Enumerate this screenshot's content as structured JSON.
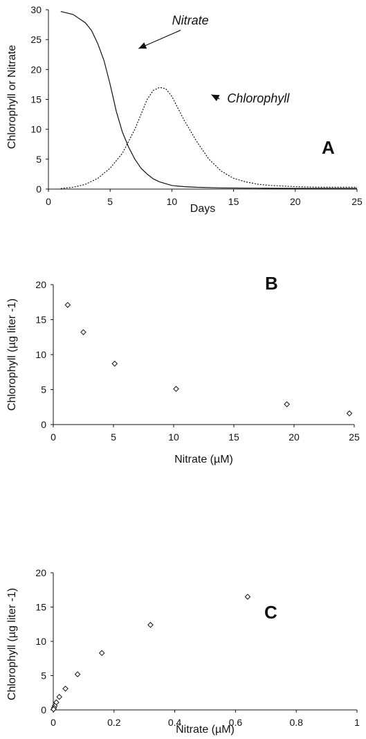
{
  "chart_data": [
    {
      "type": "line",
      "panel_label": "A",
      "xlabel": "Days",
      "ylabel": "Chlorophyll or Nitrate",
      "xlim": [
        0,
        25
      ],
      "ylim": [
        0,
        30
      ],
      "xticks": [
        0,
        5,
        10,
        15,
        20,
        25
      ],
      "yticks": [
        0,
        5,
        10,
        15,
        20,
        25,
        30
      ],
      "grid": false,
      "series": [
        {
          "name": "Nitrate",
          "style": "solid",
          "x": [
            1,
            2,
            3,
            3.5,
            4,
            4.5,
            5,
            5.5,
            6,
            6.5,
            7,
            7.5,
            8,
            8.5,
            9,
            10,
            11,
            12,
            14,
            17,
            20,
            25
          ],
          "y": [
            29.7,
            29.2,
            27.8,
            26.5,
            24.3,
            21.5,
            17.5,
            13,
            9.5,
            7,
            5,
            3.5,
            2.5,
            1.7,
            1.2,
            0.6,
            0.4,
            0.3,
            0.2,
            0.15,
            0.12,
            0.1
          ]
        },
        {
          "name": "Chlorophyll",
          "style": "dotted",
          "x": [
            1,
            2,
            3,
            4,
            5,
            6,
            7,
            7.5,
            8,
            8.5,
            9,
            9.5,
            10,
            10.5,
            11,
            12,
            13,
            14,
            15,
            16,
            17,
            18,
            20,
            22,
            24,
            25
          ],
          "y": [
            0.1,
            0.3,
            0.8,
            1.8,
            3.5,
            6,
            10,
            12.5,
            15,
            16.5,
            17,
            16.8,
            15.5,
            13.5,
            11.5,
            8,
            5,
            3,
            1.8,
            1.2,
            0.8,
            0.6,
            0.4,
            0.3,
            0.3,
            0.3
          ]
        }
      ],
      "annotations": [
        {
          "text": "Nitrate",
          "x": 11.5,
          "y": 27.5,
          "arrow_to": [
            7.3,
            23.5
          ]
        },
        {
          "text": "Chlorophyll",
          "x": 17,
          "y": 14.5,
          "arrow_to": [
            13.2,
            15.8
          ]
        }
      ]
    },
    {
      "type": "scatter",
      "panel_label": "B",
      "xlabel": "Nitrate (µM)",
      "ylabel": "Chlorophyll (µg liter -1)",
      "xlim": [
        0,
        25
      ],
      "ylim": [
        0,
        20
      ],
      "xticks": [
        0,
        5,
        10,
        15,
        20,
        25
      ],
      "yticks": [
        0,
        5,
        10,
        15,
        20
      ],
      "marker": "diamond",
      "grid": false,
      "x": [
        1.2,
        2.5,
        5.1,
        10.2,
        19.4,
        24.6
      ],
      "y": [
        17.1,
        13.2,
        8.7,
        5.1,
        2.9,
        1.6
      ]
    },
    {
      "type": "scatter",
      "panel_label": "C",
      "xlabel": "Nitrate (µM)",
      "ylabel": "Chlorophyll (µg liter -1)",
      "xlim": [
        0,
        1
      ],
      "ylim": [
        0,
        20
      ],
      "xticks": [
        0,
        0.2,
        0.4,
        0.6,
        0.8,
        1
      ],
      "yticks": [
        0,
        5,
        10,
        15,
        20
      ],
      "marker": "diamond",
      "grid": false,
      "x": [
        0.64,
        0.32,
        0.16,
        0.08,
        0.04,
        0.02,
        0.01,
        0.005,
        0.0025,
        0.001
      ],
      "y": [
        16.5,
        12.4,
        8.3,
        5.2,
        3.1,
        1.9,
        1.1,
        0.6,
        0.3,
        0.1
      ]
    }
  ]
}
